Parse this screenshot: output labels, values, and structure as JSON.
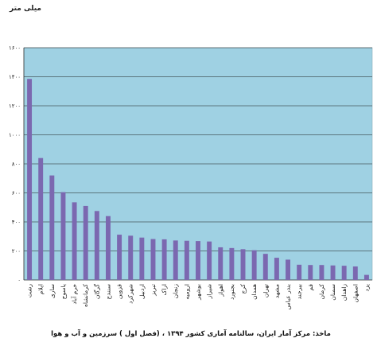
{
  "chart_data": {
    "type": "bar",
    "title": "",
    "ylabel": "میلی متر",
    "xlabel": "",
    "ylim": [
      0,
      1600
    ],
    "yticks": [
      0,
      200,
      400,
      600,
      800,
      1000,
      1200,
      1400,
      1600
    ],
    "ytick_labels": [
      "۰",
      "۲۰۰",
      "۴۰۰",
      "۶۰۰",
      "۸۰۰",
      "۱۰۰۰",
      "۱۲۰۰",
      "۱۴۰۰",
      "۱۶۰۰"
    ],
    "grid": true,
    "categories": [
      "رشت",
      "ایلام",
      "ساری",
      "یاسوج",
      "خرم آباد",
      "کرمانشاه",
      "گرگان",
      "سنندج",
      "قزوین",
      "شهرکرد",
      "اردبیل",
      "تبریز",
      "اراک",
      "زنجان",
      "ارومیه",
      "بوشهر",
      "شیراز",
      "اهواز",
      "بجنورد",
      "کرج",
      "همدان",
      "تهران",
      "مشهد",
      "بندر عباس",
      "بیرجند",
      "قم",
      "کرمان",
      "سمنان",
      "زاهدان",
      "اصفهان",
      "یزد"
    ],
    "values": [
      1385,
      840,
      720,
      605,
      535,
      510,
      475,
      440,
      312,
      305,
      292,
      282,
      280,
      272,
      270,
      268,
      265,
      225,
      220,
      212,
      205,
      180,
      153,
      140,
      105,
      103,
      103,
      100,
      98,
      93,
      35
    ],
    "bar_color": "#7b68b0",
    "plot_bg": "#9fd1e3"
  },
  "caption": "ماخذ: مرکز آمار ایران، سالنامه آماری کشور ۱۳۹۴ ، (فصل اول ) سرزمین و آب و هوا"
}
